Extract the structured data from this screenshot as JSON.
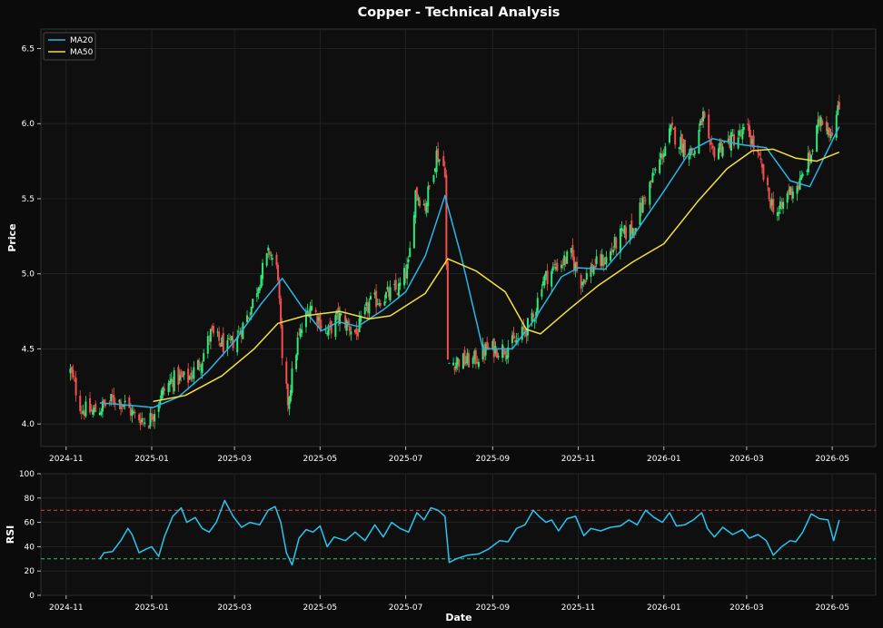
{
  "chart_data": [
    {
      "type": "candlestick",
      "title": "Copper - Technical Analysis",
      "xlabel": "",
      "ylabel": "Price",
      "ylim": [
        3.85,
        6.63
      ],
      "yticks": [
        4.0,
        4.5,
        5.0,
        5.5,
        6.0,
        6.5
      ],
      "xlim": [
        "2024-10-14",
        "2026-06-01"
      ],
      "xticks": [
        "2024-11",
        "2025-01",
        "2025-03",
        "2025-05",
        "2025-07",
        "2025-09",
        "2025-11",
        "2026-01",
        "2026-03",
        "2026-05"
      ],
      "grid": true,
      "legend": "top-left",
      "up_color": "#2ee87a",
      "down_color": "#f0504f",
      "close_anchors": [
        [
          "2024-11-04",
          4.35
        ],
        [
          "2024-11-12",
          4.1
        ],
        [
          "2024-11-20",
          4.08
        ],
        [
          "2024-11-28",
          4.12
        ],
        [
          "2024-12-06",
          4.17
        ],
        [
          "2024-12-13",
          4.13
        ],
        [
          "2024-12-20",
          4.05
        ],
        [
          "2024-12-30",
          4.02
        ],
        [
          "2025-01-08",
          4.2
        ],
        [
          "2025-01-16",
          4.3
        ],
        [
          "2025-01-27",
          4.3
        ],
        [
          "2025-02-05",
          4.42
        ],
        [
          "2025-02-12",
          4.6
        ],
        [
          "2025-02-24",
          4.5
        ],
        [
          "2025-03-04",
          4.6
        ],
        [
          "2025-03-12",
          4.75
        ],
        [
          "2025-03-20",
          5.0
        ],
        [
          "2025-03-26",
          5.15
        ],
        [
          "2025-04-01",
          5.0
        ],
        [
          "2025-04-04",
          4.4
        ],
        [
          "2025-04-08",
          4.15
        ],
        [
          "2025-04-15",
          4.55
        ],
        [
          "2025-04-24",
          4.8
        ],
        [
          "2025-05-06",
          4.6
        ],
        [
          "2025-05-14",
          4.72
        ],
        [
          "2025-05-27",
          4.6
        ],
        [
          "2025-06-05",
          4.8
        ],
        [
          "2025-06-16",
          4.85
        ],
        [
          "2025-06-26",
          4.9
        ],
        [
          "2025-07-03",
          5.05
        ],
        [
          "2025-07-08",
          5.55
        ],
        [
          "2025-07-15",
          5.45
        ],
        [
          "2025-07-23",
          5.8
        ],
        [
          "2025-07-29",
          5.7
        ],
        [
          "2025-07-31",
          4.4
        ],
        [
          "2025-08-07",
          4.42
        ],
        [
          "2025-08-18",
          4.42
        ],
        [
          "2025-08-28",
          4.5
        ],
        [
          "2025-09-08",
          4.5
        ],
        [
          "2025-09-18",
          4.55
        ],
        [
          "2025-09-30",
          4.7
        ],
        [
          "2025-10-06",
          4.95
        ],
        [
          "2025-10-16",
          5.05
        ],
        [
          "2025-10-27",
          5.12
        ],
        [
          "2025-11-03",
          4.95
        ],
        [
          "2025-11-12",
          5.05
        ],
        [
          "2025-11-21",
          5.1
        ],
        [
          "2025-12-01",
          5.25
        ],
        [
          "2025-12-10",
          5.3
        ],
        [
          "2025-12-18",
          5.5
        ],
        [
          "2025-12-29",
          5.75
        ],
        [
          "2026-01-06",
          5.95
        ],
        [
          "2026-01-15",
          5.85
        ],
        [
          "2026-01-22",
          5.8
        ],
        [
          "2026-01-29",
          6.05
        ],
        [
          "2026-02-03",
          5.8
        ],
        [
          "2026-02-10",
          5.85
        ],
        [
          "2026-02-20",
          5.9
        ],
        [
          "2026-03-02",
          5.95
        ],
        [
          "2026-03-10",
          5.75
        ],
        [
          "2026-03-17",
          5.5
        ],
        [
          "2026-03-24",
          5.4
        ],
        [
          "2026-03-31",
          5.55
        ],
        [
          "2026-04-08",
          5.6
        ],
        [
          "2026-04-16",
          5.8
        ],
        [
          "2026-04-23",
          6.05
        ],
        [
          "2026-04-30",
          5.95
        ],
        [
          "2026-05-06",
          6.1
        ]
      ],
      "series": [
        {
          "name": "MA20",
          "color": "#29b6e8",
          "points": [
            [
              "2024-11-25",
              4.14
            ],
            [
              "2024-12-10",
              4.13
            ],
            [
              "2025-01-02",
              4.11
            ],
            [
              "2025-01-20",
              4.18
            ],
            [
              "2025-02-10",
              4.35
            ],
            [
              "2025-03-01",
              4.55
            ],
            [
              "2025-03-20",
              4.8
            ],
            [
              "2025-04-04",
              4.97
            ],
            [
              "2025-04-18",
              4.78
            ],
            [
              "2025-05-02",
              4.62
            ],
            [
              "2025-05-14",
              4.68
            ],
            [
              "2025-05-28",
              4.65
            ],
            [
              "2025-06-15",
              4.76
            ],
            [
              "2025-07-01",
              4.88
            ],
            [
              "2025-07-15",
              5.12
            ],
            [
              "2025-07-29",
              5.52
            ],
            [
              "2025-08-10",
              5.1
            ],
            [
              "2025-08-25",
              4.5
            ],
            [
              "2025-09-15",
              4.5
            ],
            [
              "2025-10-01",
              4.7
            ],
            [
              "2025-10-20",
              4.98
            ],
            [
              "2025-11-01",
              5.04
            ],
            [
              "2025-11-20",
              5.03
            ],
            [
              "2025-12-10",
              5.25
            ],
            [
              "2026-01-01",
              5.55
            ],
            [
              "2026-01-20",
              5.82
            ],
            [
              "2026-02-05",
              5.9
            ],
            [
              "2026-02-25",
              5.86
            ],
            [
              "2026-03-15",
              5.84
            ],
            [
              "2026-04-01",
              5.62
            ],
            [
              "2026-04-15",
              5.58
            ],
            [
              "2026-05-06",
              5.98
            ]
          ]
        },
        {
          "name": "MA50",
          "color": "#f2e13c",
          "points": [
            [
              "2025-01-02",
              4.15
            ],
            [
              "2025-01-25",
              4.19
            ],
            [
              "2025-02-20",
              4.32
            ],
            [
              "2025-03-15",
              4.5
            ],
            [
              "2025-04-01",
              4.67
            ],
            [
              "2025-04-20",
              4.72
            ],
            [
              "2025-05-15",
              4.75
            ],
            [
              "2025-06-05",
              4.7
            ],
            [
              "2025-06-20",
              4.72
            ],
            [
              "2025-07-15",
              4.87
            ],
            [
              "2025-07-31",
              5.1
            ],
            [
              "2025-08-20",
              5.02
            ],
            [
              "2025-09-10",
              4.88
            ],
            [
              "2025-09-25",
              4.63
            ],
            [
              "2025-10-05",
              4.6
            ],
            [
              "2025-10-25",
              4.76
            ],
            [
              "2025-11-15",
              4.92
            ],
            [
              "2025-12-10",
              5.08
            ],
            [
              "2026-01-01",
              5.2
            ],
            [
              "2026-01-25",
              5.48
            ],
            [
              "2026-02-15",
              5.7
            ],
            [
              "2026-03-05",
              5.82
            ],
            [
              "2026-03-20",
              5.83
            ],
            [
              "2026-04-05",
              5.77
            ],
            [
              "2026-04-20",
              5.75
            ],
            [
              "2026-05-06",
              5.81
            ]
          ]
        }
      ]
    },
    {
      "type": "line",
      "title": "",
      "xlabel": "Date",
      "ylabel": "RSI",
      "ylim": [
        0,
        100
      ],
      "yticks": [
        0,
        20,
        40,
        60,
        80,
        100
      ],
      "xlim": [
        "2024-10-14",
        "2026-06-01"
      ],
      "xticks": [
        "2024-11",
        "2025-01",
        "2025-03",
        "2025-05",
        "2025-07",
        "2025-09",
        "2025-11",
        "2026-01",
        "2026-03",
        "2026-05"
      ],
      "grid": true,
      "reference_lines": [
        {
          "value": 70,
          "color": "#e0453f"
        },
        {
          "value": 30,
          "color": "#26c972"
        }
      ],
      "series": [
        {
          "name": "RSI",
          "color": "#29c5ef",
          "points": [
            [
              "2024-11-25",
              30
            ],
            [
              "2024-11-28",
              35
            ],
            [
              "2024-12-04",
              36
            ],
            [
              "2024-12-10",
              45
            ],
            [
              "2024-12-15",
              55
            ],
            [
              "2024-12-18",
              50
            ],
            [
              "2024-12-23",
              35
            ],
            [
              "2024-12-28",
              38
            ],
            [
              "2025-01-01",
              40
            ],
            [
              "2025-01-06",
              32
            ],
            [
              "2025-01-10",
              48
            ],
            [
              "2025-01-16",
              65
            ],
            [
              "2025-01-22",
              72
            ],
            [
              "2025-01-26",
              60
            ],
            [
              "2025-02-01",
              64
            ],
            [
              "2025-02-06",
              55
            ],
            [
              "2025-02-11",
              52
            ],
            [
              "2025-02-16",
              60
            ],
            [
              "2025-02-22",
              78
            ],
            [
              "2025-02-28",
              65
            ],
            [
              "2025-03-06",
              56
            ],
            [
              "2025-03-12",
              60
            ],
            [
              "2025-03-19",
              58
            ],
            [
              "2025-03-25",
              70
            ],
            [
              "2025-03-30",
              73
            ],
            [
              "2025-04-03",
              60
            ],
            [
              "2025-04-07",
              35
            ],
            [
              "2025-04-11",
              25
            ],
            [
              "2025-04-16",
              47
            ],
            [
              "2025-04-21",
              54
            ],
            [
              "2025-04-26",
              52
            ],
            [
              "2025-05-01",
              57
            ],
            [
              "2025-05-06",
              40
            ],
            [
              "2025-05-11",
              48
            ],
            [
              "2025-05-19",
              45
            ],
            [
              "2025-05-26",
              52
            ],
            [
              "2025-06-02",
              45
            ],
            [
              "2025-06-09",
              58
            ],
            [
              "2025-06-15",
              48
            ],
            [
              "2025-06-21",
              60
            ],
            [
              "2025-06-27",
              55
            ],
            [
              "2025-07-03",
              52
            ],
            [
              "2025-07-09",
              68
            ],
            [
              "2025-07-14",
              62
            ],
            [
              "2025-07-19",
              72
            ],
            [
              "2025-07-24",
              70
            ],
            [
              "2025-07-29",
              65
            ],
            [
              "2025-08-01",
              27
            ],
            [
              "2025-08-06",
              30
            ],
            [
              "2025-08-14",
              33
            ],
            [
              "2025-08-22",
              34
            ],
            [
              "2025-08-29",
              38
            ],
            [
              "2025-09-06",
              45
            ],
            [
              "2025-09-12",
              44
            ],
            [
              "2025-09-18",
              55
            ],
            [
              "2025-09-24",
              58
            ],
            [
              "2025-09-30",
              70
            ],
            [
              "2025-10-04",
              65
            ],
            [
              "2025-10-09",
              60
            ],
            [
              "2025-10-13",
              62
            ],
            [
              "2025-10-18",
              53
            ],
            [
              "2025-10-24",
              63
            ],
            [
              "2025-10-30",
              65
            ],
            [
              "2025-11-05",
              49
            ],
            [
              "2025-11-10",
              55
            ],
            [
              "2025-11-17",
              53
            ],
            [
              "2025-11-24",
              56
            ],
            [
              "2025-12-01",
              57
            ],
            [
              "2025-12-07",
              62
            ],
            [
              "2025-12-13",
              58
            ],
            [
              "2025-12-19",
              70
            ],
            [
              "2025-12-25",
              64
            ],
            [
              "2025-12-31",
              60
            ],
            [
              "2026-01-05",
              68
            ],
            [
              "2026-01-10",
              57
            ],
            [
              "2026-01-16",
              58
            ],
            [
              "2026-01-22",
              62
            ],
            [
              "2026-01-28",
              68
            ],
            [
              "2026-02-01",
              55
            ],
            [
              "2026-02-06",
              48
            ],
            [
              "2026-02-12",
              56
            ],
            [
              "2026-02-19",
              50
            ],
            [
              "2026-02-26",
              54
            ],
            [
              "2026-03-03",
              47
            ],
            [
              "2026-03-09",
              50
            ],
            [
              "2026-03-15",
              45
            ],
            [
              "2026-03-20",
              33
            ],
            [
              "2026-03-26",
              40
            ],
            [
              "2026-04-01",
              45
            ],
            [
              "2026-04-05",
              44
            ],
            [
              "2026-04-10",
              52
            ],
            [
              "2026-04-16",
              67
            ],
            [
              "2026-04-22",
              63
            ],
            [
              "2026-04-28",
              62
            ],
            [
              "2026-05-02",
              45
            ],
            [
              "2026-05-06",
              62
            ]
          ]
        }
      ]
    }
  ]
}
